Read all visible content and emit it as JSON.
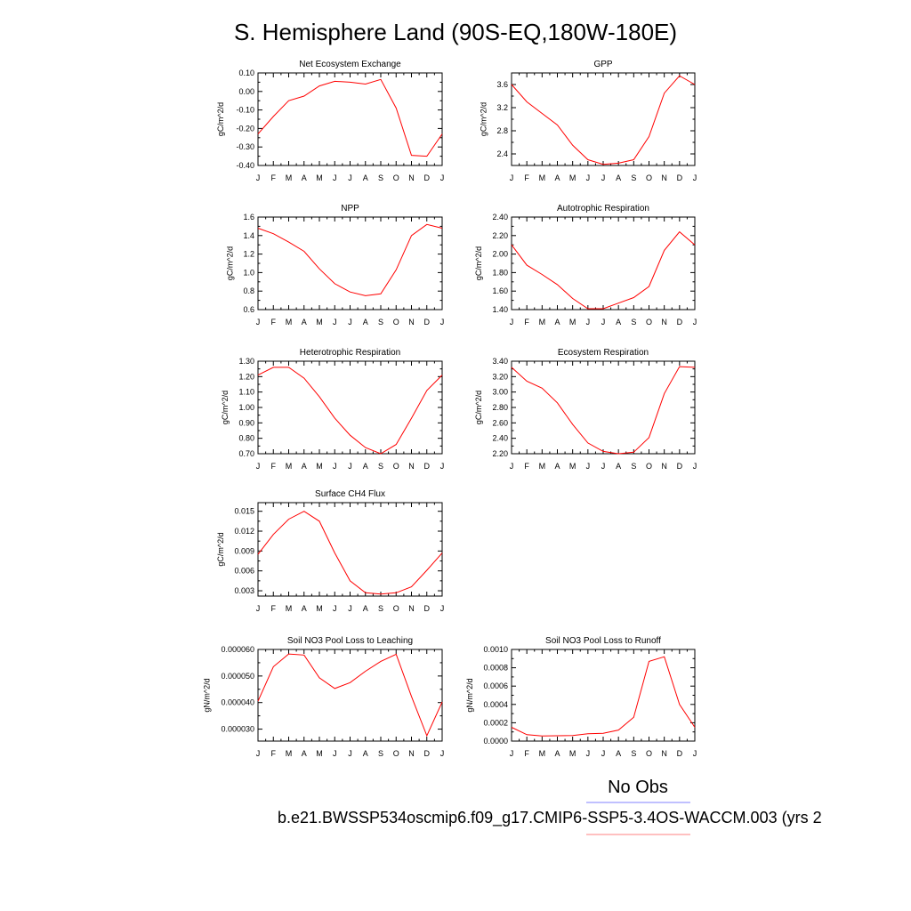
{
  "title": "S. Hemisphere Land (90S-EQ,180W-180E)",
  "months": [
    "J",
    "F",
    "M",
    "A",
    "M",
    "J",
    "J",
    "A",
    "S",
    "O",
    "N",
    "D",
    "J"
  ],
  "legend": {
    "obs_label": "No Obs",
    "case_label": "b.e21.BWSSP534oscmip6.f09_g17.CMIP6-SSP5-3.4OS-WACCM.003 (yrs 2",
    "obs_color": "#8080ff",
    "case_color": "#ff8080"
  },
  "line_color": "#ff0000",
  "chart_data": [
    {
      "type": "line",
      "title": "Net Ecosystem Exchange",
      "ylabel": "gC/m^2/d",
      "ylim": [
        -0.4,
        0.1
      ],
      "yticks": [
        0.1,
        0.0,
        -0.1,
        -0.2,
        -0.3,
        -0.4
      ],
      "ytick_labels": [
        "0.10",
        "0.00",
        "-0.10",
        "-0.20",
        "-0.30",
        "-0.40"
      ],
      "values": [
        -0.23,
        -0.135,
        -0.05,
        -0.025,
        0.03,
        0.055,
        0.05,
        0.04,
        0.065,
        -0.09,
        -0.345,
        -0.35,
        -0.23
      ]
    },
    {
      "type": "line",
      "title": "GPP",
      "ylabel": "gC/m^2/d",
      "ylim": [
        2.2,
        3.8
      ],
      "yticks": [
        3.6,
        3.2,
        2.8,
        2.4
      ],
      "ytick_labels": [
        "3.6",
        "3.2",
        "2.8",
        "2.4"
      ],
      "values": [
        3.6,
        3.3,
        3.1,
        2.9,
        2.55,
        2.3,
        2.22,
        2.24,
        2.3,
        2.7,
        3.45,
        3.75,
        3.6
      ]
    },
    {
      "type": "line",
      "title": "NPP",
      "ylabel": "gC/m^2/d",
      "ylim": [
        0.6,
        1.6
      ],
      "yticks": [
        1.6,
        1.4,
        1.2,
        1.0,
        0.8,
        0.6
      ],
      "ytick_labels": [
        "1.6",
        "1.4",
        "1.2",
        "1.0",
        "0.8",
        "0.6"
      ],
      "values": [
        1.48,
        1.42,
        1.33,
        1.23,
        1.04,
        0.88,
        0.79,
        0.75,
        0.77,
        1.03,
        1.4,
        1.52,
        1.48
      ]
    },
    {
      "type": "line",
      "title": "Autotrophic Respiration",
      "ylabel": "gC/m^2/d",
      "ylim": [
        1.4,
        2.4
      ],
      "yticks": [
        2.4,
        2.2,
        2.0,
        1.8,
        1.6,
        1.4
      ],
      "ytick_labels": [
        "2.40",
        "2.20",
        "2.00",
        "1.80",
        "1.60",
        "1.40"
      ],
      "values": [
        2.1,
        1.88,
        1.78,
        1.67,
        1.52,
        1.41,
        1.41,
        1.47,
        1.53,
        1.65,
        2.04,
        2.24,
        2.1
      ]
    },
    {
      "type": "line",
      "title": "Heterotrophic Respiration",
      "ylabel": "gC/m^2/d",
      "ylim": [
        0.7,
        1.3
      ],
      "yticks": [
        1.3,
        1.2,
        1.1,
        1.0,
        0.9,
        0.8,
        0.7
      ],
      "ytick_labels": [
        "1.30",
        "1.20",
        "1.10",
        "1.00",
        "0.90",
        "0.80",
        "0.70"
      ],
      "values": [
        1.21,
        1.26,
        1.26,
        1.19,
        1.07,
        0.93,
        0.82,
        0.74,
        0.7,
        0.76,
        0.93,
        1.11,
        1.21
      ]
    },
    {
      "type": "line",
      "title": "Ecosystem Respiration",
      "ylabel": "gC/m^2/d",
      "ylim": [
        2.2,
        3.4
      ],
      "yticks": [
        3.4,
        3.2,
        3.0,
        2.8,
        2.6,
        2.4,
        2.2
      ],
      "ytick_labels": [
        "3.40",
        "3.20",
        "3.00",
        "2.80",
        "2.60",
        "2.40",
        "2.20"
      ],
      "values": [
        3.32,
        3.14,
        3.05,
        2.86,
        2.58,
        2.34,
        2.23,
        2.2,
        2.22,
        2.41,
        2.98,
        3.33,
        3.32
      ]
    },
    {
      "type": "line",
      "title": "Surface CH4 Flux",
      "ylabel": "gC/m^2/d",
      "ylim": [
        0.0022,
        0.0163
      ],
      "yticks": [
        0.015,
        0.012,
        0.009,
        0.006,
        0.003
      ],
      "ytick_labels": [
        "0.015",
        "0.012",
        "0.009",
        "0.006",
        "0.003"
      ],
      "values": [
        0.0085,
        0.0115,
        0.0138,
        0.015,
        0.0135,
        0.0087,
        0.0045,
        0.0027,
        0.0025,
        0.0027,
        0.0036,
        0.0061,
        0.0087
      ]
    },
    {
      "type": "line",
      "title": "Soil NO3 Pool Loss to Leaching",
      "ylabel": "gN/m^2/d",
      "ylim": [
        2.55e-05,
        6e-05
      ],
      "yticks": [
        6e-05,
        5e-05,
        4e-05,
        3e-05
      ],
      "ytick_labels": [
        "0.000060",
        "0.000050",
        "0.000040",
        "0.000030"
      ],
      "values": [
        4.05e-05,
        5.35e-05,
        5.83e-05,
        5.79e-05,
        4.93e-05,
        4.53e-05,
        4.75e-05,
        5.18e-05,
        5.55e-05,
        5.82e-05,
        4.23e-05,
        2.75e-05,
        4.02e-05
      ]
    },
    {
      "type": "line",
      "title": "Soil NO3 Pool Loss to Runoff",
      "ylabel": "gN/m^2/d",
      "ylim": [
        0.0,
        0.001
      ],
      "yticks": [
        0.001,
        0.0008,
        0.0006,
        0.0004,
        0.0002,
        0.0
      ],
      "ytick_labels": [
        "0.0010",
        "0.0008",
        "0.0006",
        "0.0004",
        "0.0002",
        "0.0000"
      ],
      "values": [
        0.00015,
        7e-05,
        5.5e-05,
        5.8e-05,
        6e-05,
        8e-05,
        8.5e-05,
        0.00012,
        0.00026,
        0.00087,
        0.00092,
        0.0004,
        0.00015
      ]
    }
  ]
}
